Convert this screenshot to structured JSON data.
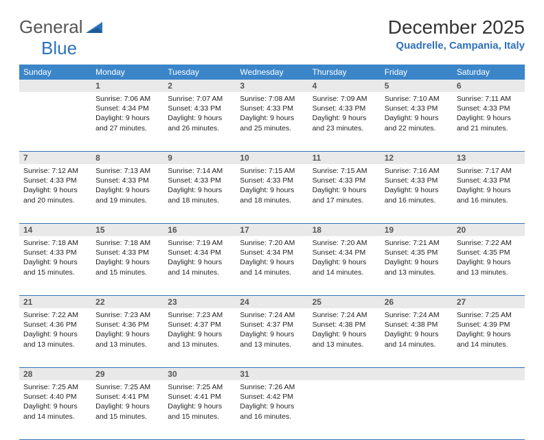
{
  "brand": {
    "part1": "General",
    "part2": "Blue"
  },
  "title": "December 2025",
  "location": "Quadrelle, Campania, Italy",
  "colors": {
    "header_bg": "#3b85c9",
    "accent": "#2f72b8",
    "daynum_bg": "#e9e9e9",
    "text": "#333333"
  },
  "day_headers": [
    "Sunday",
    "Monday",
    "Tuesday",
    "Wednesday",
    "Thursday",
    "Friday",
    "Saturday"
  ],
  "weeks": [
    {
      "nums": [
        "",
        "1",
        "2",
        "3",
        "4",
        "5",
        "6"
      ],
      "cells": [
        null,
        {
          "sunrise": "7:06 AM",
          "sunset": "4:34 PM",
          "daylight": "9 hours and 27 minutes."
        },
        {
          "sunrise": "7:07 AM",
          "sunset": "4:33 PM",
          "daylight": "9 hours and 26 minutes."
        },
        {
          "sunrise": "7:08 AM",
          "sunset": "4:33 PM",
          "daylight": "9 hours and 25 minutes."
        },
        {
          "sunrise": "7:09 AM",
          "sunset": "4:33 PM",
          "daylight": "9 hours and 23 minutes."
        },
        {
          "sunrise": "7:10 AM",
          "sunset": "4:33 PM",
          "daylight": "9 hours and 22 minutes."
        },
        {
          "sunrise": "7:11 AM",
          "sunset": "4:33 PM",
          "daylight": "9 hours and 21 minutes."
        }
      ]
    },
    {
      "nums": [
        "7",
        "8",
        "9",
        "10",
        "11",
        "12",
        "13"
      ],
      "cells": [
        {
          "sunrise": "7:12 AM",
          "sunset": "4:33 PM",
          "daylight": "9 hours and 20 minutes."
        },
        {
          "sunrise": "7:13 AM",
          "sunset": "4:33 PM",
          "daylight": "9 hours and 19 minutes."
        },
        {
          "sunrise": "7:14 AM",
          "sunset": "4:33 PM",
          "daylight": "9 hours and 18 minutes."
        },
        {
          "sunrise": "7:15 AM",
          "sunset": "4:33 PM",
          "daylight": "9 hours and 18 minutes."
        },
        {
          "sunrise": "7:15 AM",
          "sunset": "4:33 PM",
          "daylight": "9 hours and 17 minutes."
        },
        {
          "sunrise": "7:16 AM",
          "sunset": "4:33 PM",
          "daylight": "9 hours and 16 minutes."
        },
        {
          "sunrise": "7:17 AM",
          "sunset": "4:33 PM",
          "daylight": "9 hours and 16 minutes."
        }
      ]
    },
    {
      "nums": [
        "14",
        "15",
        "16",
        "17",
        "18",
        "19",
        "20"
      ],
      "cells": [
        {
          "sunrise": "7:18 AM",
          "sunset": "4:33 PM",
          "daylight": "9 hours and 15 minutes."
        },
        {
          "sunrise": "7:18 AM",
          "sunset": "4:33 PM",
          "daylight": "9 hours and 15 minutes."
        },
        {
          "sunrise": "7:19 AM",
          "sunset": "4:34 PM",
          "daylight": "9 hours and 14 minutes."
        },
        {
          "sunrise": "7:20 AM",
          "sunset": "4:34 PM",
          "daylight": "9 hours and 14 minutes."
        },
        {
          "sunrise": "7:20 AM",
          "sunset": "4:34 PM",
          "daylight": "9 hours and 14 minutes."
        },
        {
          "sunrise": "7:21 AM",
          "sunset": "4:35 PM",
          "daylight": "9 hours and 13 minutes."
        },
        {
          "sunrise": "7:22 AM",
          "sunset": "4:35 PM",
          "daylight": "9 hours and 13 minutes."
        }
      ]
    },
    {
      "nums": [
        "21",
        "22",
        "23",
        "24",
        "25",
        "26",
        "27"
      ],
      "cells": [
        {
          "sunrise": "7:22 AM",
          "sunset": "4:36 PM",
          "daylight": "9 hours and 13 minutes."
        },
        {
          "sunrise": "7:23 AM",
          "sunset": "4:36 PM",
          "daylight": "9 hours and 13 minutes."
        },
        {
          "sunrise": "7:23 AM",
          "sunset": "4:37 PM",
          "daylight": "9 hours and 13 minutes."
        },
        {
          "sunrise": "7:24 AM",
          "sunset": "4:37 PM",
          "daylight": "9 hours and 13 minutes."
        },
        {
          "sunrise": "7:24 AM",
          "sunset": "4:38 PM",
          "daylight": "9 hours and 13 minutes."
        },
        {
          "sunrise": "7:24 AM",
          "sunset": "4:38 PM",
          "daylight": "9 hours and 14 minutes."
        },
        {
          "sunrise": "7:25 AM",
          "sunset": "4:39 PM",
          "daylight": "9 hours and 14 minutes."
        }
      ]
    },
    {
      "nums": [
        "28",
        "29",
        "30",
        "31",
        "",
        "",
        ""
      ],
      "cells": [
        {
          "sunrise": "7:25 AM",
          "sunset": "4:40 PM",
          "daylight": "9 hours and 14 minutes."
        },
        {
          "sunrise": "7:25 AM",
          "sunset": "4:41 PM",
          "daylight": "9 hours and 15 minutes."
        },
        {
          "sunrise": "7:25 AM",
          "sunset": "4:41 PM",
          "daylight": "9 hours and 15 minutes."
        },
        {
          "sunrise": "7:26 AM",
          "sunset": "4:42 PM",
          "daylight": "9 hours and 16 minutes."
        },
        null,
        null,
        null
      ]
    }
  ],
  "labels": {
    "sunrise": "Sunrise:",
    "sunset": "Sunset:",
    "daylight": "Daylight:"
  }
}
